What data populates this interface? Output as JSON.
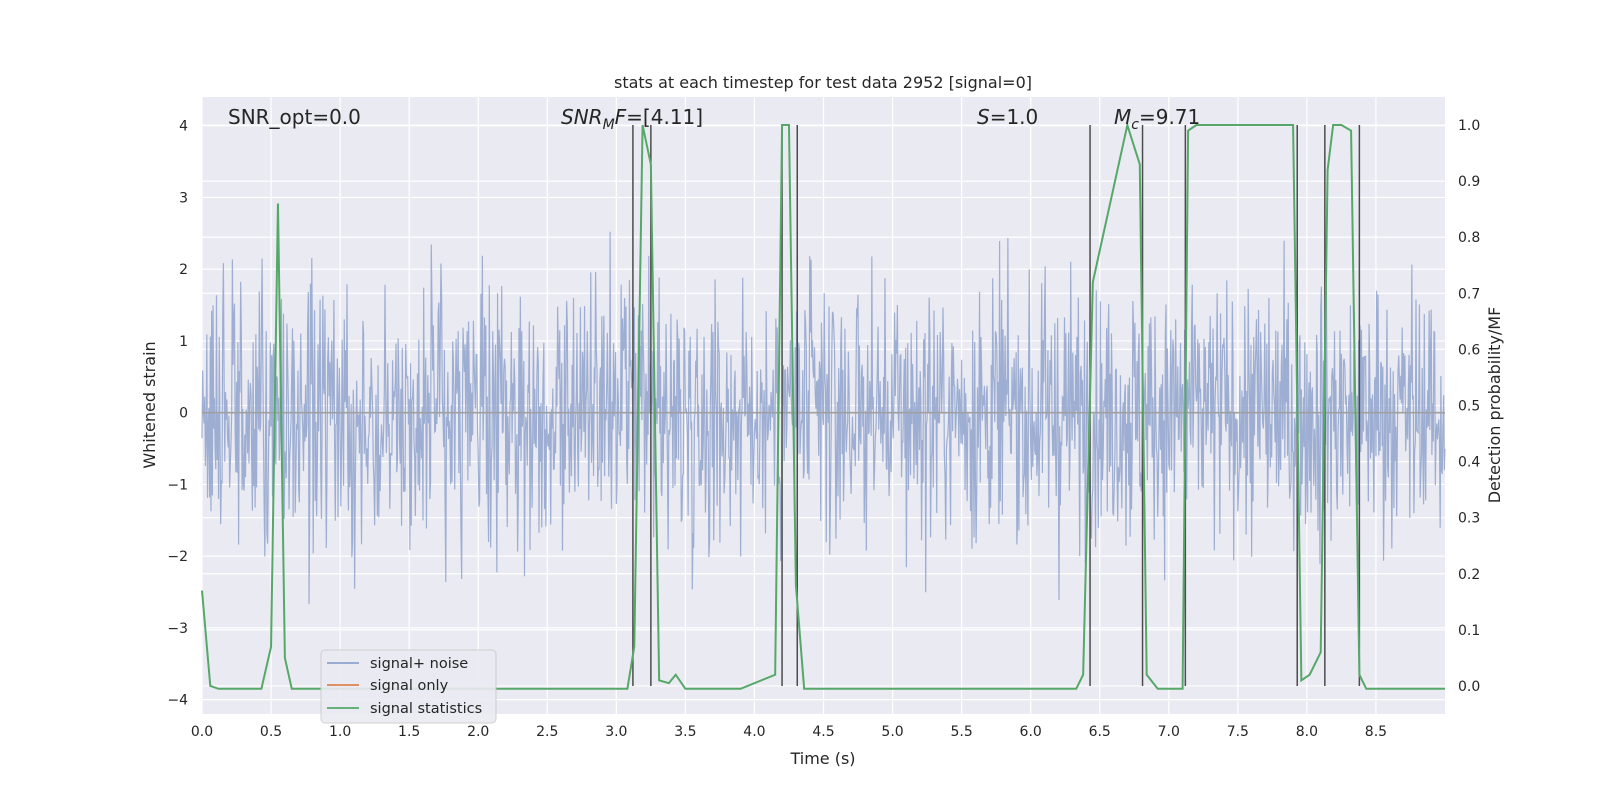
{
  "chart_data": {
    "type": "line",
    "title": "stats at each timestep for test data 2952 [signal=0]",
    "xlabel": "Time (s)",
    "ylabel_left": "Whitened strain",
    "ylabel_right": "Detection probability/MF",
    "xlim": [
      0.0,
      9.0
    ],
    "ylim_left": [
      -4.2,
      4.4
    ],
    "ylim_right": [
      -0.05,
      1.05
    ],
    "grid": true,
    "legend_position": "lower-left",
    "xticks": [
      "0.0",
      "0.5",
      "1.0",
      "1.5",
      "2.0",
      "2.5",
      "3.0",
      "3.5",
      "4.0",
      "4.5",
      "5.0",
      "5.5",
      "6.0",
      "6.5",
      "7.0",
      "7.5",
      "8.0",
      "8.5"
    ],
    "yticks_left": [
      "4",
      "3",
      "2",
      "1",
      "0",
      "−1",
      "−2",
      "−3",
      "−4"
    ],
    "yticks_right": [
      "1.0",
      "0.9",
      "0.8",
      "0.7",
      "0.6",
      "0.5",
      "0.4",
      "0.3",
      "0.2",
      "0.1",
      "0.0"
    ],
    "annotations": {
      "snr_opt": "SNR_opt=0.0",
      "snr_mf_sym": "SNR",
      "snr_mf_sub": "M",
      "snr_mf_sym2": "F",
      "snr_mf_val": "=[4.11]",
      "s_sym": "S",
      "s_val": "=1.0",
      "mc_sym": "M",
      "mc_sub": "c",
      "mc_val": "=9.71"
    },
    "series": [
      {
        "name": "signal+ noise",
        "color": "#8fa3cc",
        "axis": "left",
        "description": "whitened strain noise, approximately within [-3.9, 3.6]"
      },
      {
        "name": "signal only",
        "color": "#dd8452",
        "axis": "left",
        "x": [
          0.0,
          9.0
        ],
        "y": [
          0.0,
          0.0
        ]
      },
      {
        "name": "signal statistics",
        "color": "#55a868",
        "axis": "right",
        "x": [
          0.0,
          0.06,
          0.12,
          0.43,
          0.5,
          0.55,
          0.6,
          0.65,
          0.72,
          3.08,
          3.13,
          3.19,
          3.25,
          3.31,
          3.38,
          3.43,
          3.5,
          3.6,
          3.8,
          3.9,
          4.15,
          4.2,
          4.25,
          4.3,
          4.36,
          4.41,
          4.47,
          6.33,
          6.38,
          6.45,
          6.7,
          6.79,
          6.84,
          6.92,
          7.1,
          7.14,
          7.2,
          7.4,
          7.9,
          7.96,
          8.02,
          8.1,
          8.15,
          8.19,
          8.25,
          8.32,
          8.38,
          8.43,
          8.53,
          9.0
        ],
        "y": [
          0.17,
          0.0,
          -0.005,
          -0.005,
          0.07,
          0.86,
          0.05,
          -0.005,
          -0.005,
          -0.005,
          0.07,
          1.0,
          0.93,
          0.01,
          0.005,
          0.02,
          -0.005,
          -0.005,
          -0.005,
          -0.005,
          0.02,
          1.0,
          1.0,
          0.18,
          -0.005,
          -0.005,
          -0.005,
          -0.005,
          0.02,
          0.72,
          1.0,
          0.93,
          0.02,
          -0.005,
          -0.005,
          0.99,
          1.0,
          1.0,
          1.0,
          0.01,
          0.02,
          0.06,
          0.92,
          1.0,
          1.0,
          0.99,
          0.02,
          -0.005,
          -0.005,
          -0.005
        ]
      }
    ],
    "vertical_markers": [
      3.12,
      3.25,
      4.2,
      4.31,
      6.43,
      6.81,
      7.12,
      7.93,
      8.13,
      8.38
    ],
    "marker_color": "#4c4c4c"
  }
}
